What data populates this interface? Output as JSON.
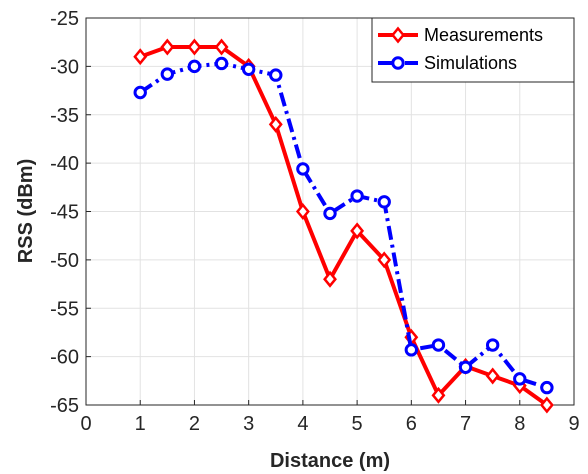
{
  "chart_data": {
    "type": "line",
    "xlabel": "Distance (m)",
    "ylabel": "RSS (dBm)",
    "xlim": [
      0,
      9
    ],
    "ylim": [
      -65,
      -25
    ],
    "xticks": [
      0,
      1,
      2,
      3,
      4,
      5,
      6,
      7,
      8,
      9
    ],
    "yticks": [
      -65,
      -60,
      -55,
      -50,
      -45,
      -40,
      -35,
      -30,
      -25
    ],
    "grid": true,
    "legend_position": "top-right",
    "series": [
      {
        "name": "Measurements",
        "color": "#ff0000",
        "line_style": "solid",
        "marker": "diamond",
        "x": [
          1,
          1.5,
          2,
          2.5,
          3,
          3.5,
          4,
          4.5,
          5,
          5.5,
          6,
          6.5,
          7,
          7.5,
          8,
          8.5
        ],
        "y": [
          -29,
          -28,
          -28,
          -28,
          -30,
          -36,
          -45,
          -52,
          -47,
          -50,
          -58,
          -64,
          -61,
          -62,
          -63,
          -65
        ]
      },
      {
        "name": "Simulations",
        "color": "#0000ff",
        "line_style": "dashdot",
        "marker": "circle",
        "x": [
          1,
          1.5,
          2,
          2.5,
          3,
          3.5,
          4,
          4.5,
          5,
          5.5,
          6,
          6.5,
          7,
          7.5,
          8,
          8.5
        ],
        "y": [
          -32.7,
          -30.8,
          -30,
          -29.7,
          -30.3,
          -30.9,
          -40.6,
          -45.2,
          -43.4,
          -44,
          -59.3,
          -58.8,
          -61.1,
          -58.8,
          -62.3,
          -63.2
        ]
      }
    ]
  }
}
